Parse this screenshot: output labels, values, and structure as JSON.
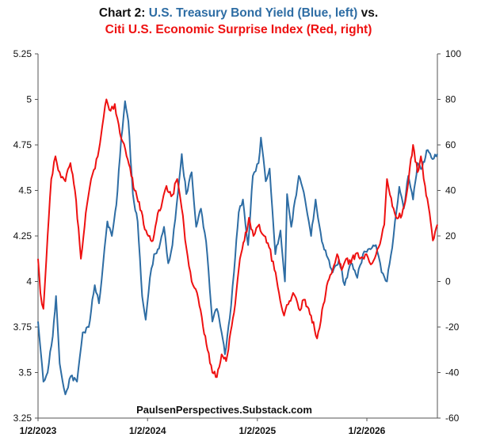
{
  "title": {
    "line1_prefix": "Chart 2: ",
    "line1_series": "U.S. Treasury Bond Yield (Blue, left)",
    "line1_suffix": " vs.",
    "line2": "Citi U.S. Economic Surprise Index (Red, right)"
  },
  "watermark": "PaulsenPerspectives.Substack.com",
  "chart_data": {
    "type": "line",
    "x_tick_labels": [
      "1/2/2023",
      "1/2/2024",
      "1/2/2025",
      "1/2/2026"
    ],
    "x_tick_dates": [
      "2023-01-02",
      "2024-01-02",
      "2025-01-02",
      "2026-01-02"
    ],
    "x_range": [
      "2023-01-02",
      "2026-08-25"
    ],
    "y_left": {
      "ylim": [
        3.25,
        5.25
      ],
      "ticks": [
        "3.25",
        "3.5",
        "3.75",
        "4",
        "4.25",
        "4.5",
        "4.75",
        "5",
        "5.25"
      ]
    },
    "y_right": {
      "ylim": [
        -60,
        100
      ],
      "ticks": [
        "-60",
        "-40",
        "-20",
        "0",
        "20",
        "40",
        "60",
        "80",
        "100"
      ]
    },
    "grid": false,
    "colors": {
      "treasury": "#2e6da4",
      "surprise": "#ee1111"
    },
    "series": [
      {
        "axis": "left",
        "color": "#2e6da4",
        "points": [
          [
            "2023-01-02",
            3.78
          ],
          [
            "2023-01-20",
            3.45
          ],
          [
            "2023-02-03",
            3.5
          ],
          [
            "2023-02-20",
            3.7
          ],
          [
            "2023-03-03",
            3.92
          ],
          [
            "2023-03-15",
            3.55
          ],
          [
            "2023-04-03",
            3.38
          ],
          [
            "2023-04-21",
            3.48
          ],
          [
            "2023-05-12",
            3.45
          ],
          [
            "2023-05-31",
            3.72
          ],
          [
            "2023-06-20",
            3.75
          ],
          [
            "2023-07-10",
            3.98
          ],
          [
            "2023-07-24",
            3.88
          ],
          [
            "2023-08-07",
            4.1
          ],
          [
            "2023-08-21",
            4.33
          ],
          [
            "2023-09-05",
            4.25
          ],
          [
            "2023-09-20",
            4.42
          ],
          [
            "2023-10-06",
            4.78
          ],
          [
            "2023-10-19",
            4.99
          ],
          [
            "2023-10-30",
            4.88
          ],
          [
            "2023-11-14",
            4.48
          ],
          [
            "2023-11-30",
            4.33
          ],
          [
            "2023-12-15",
            3.92
          ],
          [
            "2023-12-27",
            3.79
          ],
          [
            "2024-01-10",
            4.02
          ],
          [
            "2024-01-24",
            4.15
          ],
          [
            "2024-02-09",
            4.18
          ],
          [
            "2024-02-26",
            4.3
          ],
          [
            "2024-03-11",
            4.1
          ],
          [
            "2024-03-25",
            4.2
          ],
          [
            "2024-04-08",
            4.42
          ],
          [
            "2024-04-25",
            4.7
          ],
          [
            "2024-05-10",
            4.48
          ],
          [
            "2024-05-28",
            4.6
          ],
          [
            "2024-06-12",
            4.3
          ],
          [
            "2024-06-28",
            4.4
          ],
          [
            "2024-07-15",
            4.22
          ],
          [
            "2024-08-05",
            3.78
          ],
          [
            "2024-08-20",
            3.85
          ],
          [
            "2024-09-05",
            3.72
          ],
          [
            "2024-09-16",
            3.6
          ],
          [
            "2024-10-02",
            3.8
          ],
          [
            "2024-10-16",
            4.05
          ],
          [
            "2024-11-01",
            4.38
          ],
          [
            "2024-11-15",
            4.45
          ],
          [
            "2024-12-02",
            4.2
          ],
          [
            "2024-12-18",
            4.58
          ],
          [
            "2025-01-06",
            4.65
          ],
          [
            "2025-01-14",
            4.79
          ],
          [
            "2025-01-30",
            4.55
          ],
          [
            "2025-02-12",
            4.62
          ],
          [
            "2025-03-03",
            4.15
          ],
          [
            "2025-03-20",
            4.28
          ],
          [
            "2025-04-04",
            4.0
          ],
          [
            "2025-04-11",
            4.48
          ],
          [
            "2025-04-25",
            4.3
          ],
          [
            "2025-05-20",
            4.58
          ],
          [
            "2025-06-10",
            4.45
          ],
          [
            "2025-06-30",
            4.25
          ],
          [
            "2025-07-15",
            4.45
          ],
          [
            "2025-08-05",
            4.22
          ],
          [
            "2025-09-10",
            4.05
          ],
          [
            "2025-10-01",
            4.12
          ],
          [
            "2025-10-20",
            3.98
          ],
          [
            "2025-11-10",
            4.1
          ],
          [
            "2025-12-01",
            4.02
          ],
          [
            "2025-12-20",
            4.15
          ],
          [
            "2026-01-10",
            4.18
          ],
          [
            "2026-02-01",
            4.2
          ],
          [
            "2026-02-20",
            4.05
          ],
          [
            "2026-03-10",
            4.0
          ],
          [
            "2026-04-01",
            4.25
          ],
          [
            "2026-04-20",
            4.52
          ],
          [
            "2026-05-05",
            4.4
          ],
          [
            "2026-05-20",
            4.58
          ],
          [
            "2026-06-05",
            4.45
          ],
          [
            "2026-06-20",
            4.65
          ],
          [
            "2026-07-05",
            4.62
          ],
          [
            "2026-07-20",
            4.72
          ],
          [
            "2026-08-05",
            4.68
          ],
          [
            "2026-08-25",
            4.7
          ]
        ]
      },
      {
        "axis": "right",
        "color": "#ee1111",
        "points": [
          [
            "2023-01-02",
            10
          ],
          [
            "2023-01-10",
            -5
          ],
          [
            "2023-01-20",
            -12
          ],
          [
            "2023-02-03",
            20
          ],
          [
            "2023-02-15",
            45
          ],
          [
            "2023-03-01",
            55
          ],
          [
            "2023-03-15",
            48
          ],
          [
            "2023-04-03",
            44
          ],
          [
            "2023-04-20",
            52
          ],
          [
            "2023-05-05",
            40
          ],
          [
            "2023-05-25",
            10
          ],
          [
            "2023-06-10",
            30
          ],
          [
            "2023-06-28",
            45
          ],
          [
            "2023-07-20",
            55
          ],
          [
            "2023-08-04",
            68
          ],
          [
            "2023-08-18",
            80
          ],
          [
            "2023-09-01",
            75
          ],
          [
            "2023-09-15",
            78
          ],
          [
            "2023-10-02",
            65
          ],
          [
            "2023-10-20",
            58
          ],
          [
            "2023-11-05",
            50
          ],
          [
            "2023-11-20",
            40
          ],
          [
            "2023-12-05",
            35
          ],
          [
            "2023-12-20",
            25
          ],
          [
            "2024-01-05",
            20
          ],
          [
            "2024-01-20",
            18
          ],
          [
            "2024-02-05",
            30
          ],
          [
            "2024-02-20",
            35
          ],
          [
            "2024-03-05",
            42
          ],
          [
            "2024-03-25",
            38
          ],
          [
            "2024-04-10",
            45
          ],
          [
            "2024-04-25",
            32
          ],
          [
            "2024-05-10",
            15
          ],
          [
            "2024-05-28",
            0
          ],
          [
            "2024-06-15",
            -5
          ],
          [
            "2024-07-05",
            -20
          ],
          [
            "2024-07-20",
            -30
          ],
          [
            "2024-08-05",
            -40
          ],
          [
            "2024-08-20",
            -42
          ],
          [
            "2024-09-05",
            -32
          ],
          [
            "2024-09-20",
            -35
          ],
          [
            "2024-10-05",
            -22
          ],
          [
            "2024-10-20",
            -10
          ],
          [
            "2024-11-05",
            10
          ],
          [
            "2024-11-20",
            18
          ],
          [
            "2024-12-05",
            28
          ],
          [
            "2024-12-20",
            20
          ],
          [
            "2025-01-08",
            25
          ],
          [
            "2025-01-25",
            20
          ],
          [
            "2025-02-10",
            15
          ],
          [
            "2025-02-28",
            5
          ],
          [
            "2025-03-15",
            -5
          ],
          [
            "2025-04-01",
            -15
          ],
          [
            "2025-04-15",
            -10
          ],
          [
            "2025-05-01",
            -5
          ],
          [
            "2025-05-20",
            -12
          ],
          [
            "2025-06-10",
            -8
          ],
          [
            "2025-06-30",
            -15
          ],
          [
            "2025-07-20",
            -25
          ],
          [
            "2025-08-10",
            -10
          ],
          [
            "2025-08-25",
            0
          ],
          [
            "2025-09-10",
            5
          ],
          [
            "2025-09-25",
            12
          ],
          [
            "2025-10-10",
            5
          ],
          [
            "2025-10-25",
            10
          ],
          [
            "2025-11-10",
            8
          ],
          [
            "2025-11-25",
            12
          ],
          [
            "2025-12-10",
            10
          ],
          [
            "2026-01-01",
            12
          ],
          [
            "2026-01-20",
            8
          ],
          [
            "2026-02-10",
            15
          ],
          [
            "2026-03-01",
            25
          ],
          [
            "2026-03-10",
            45
          ],
          [
            "2026-03-20",
            38
          ],
          [
            "2026-04-05",
            30
          ],
          [
            "2026-04-25",
            28
          ],
          [
            "2026-05-10",
            35
          ],
          [
            "2026-05-25",
            50
          ],
          [
            "2026-06-05",
            60
          ],
          [
            "2026-06-20",
            48
          ],
          [
            "2026-07-01",
            55
          ],
          [
            "2026-07-15",
            42
          ],
          [
            "2026-07-30",
            30
          ],
          [
            "2026-08-10",
            18
          ],
          [
            "2026-08-25",
            25
          ]
        ]
      }
    ]
  }
}
